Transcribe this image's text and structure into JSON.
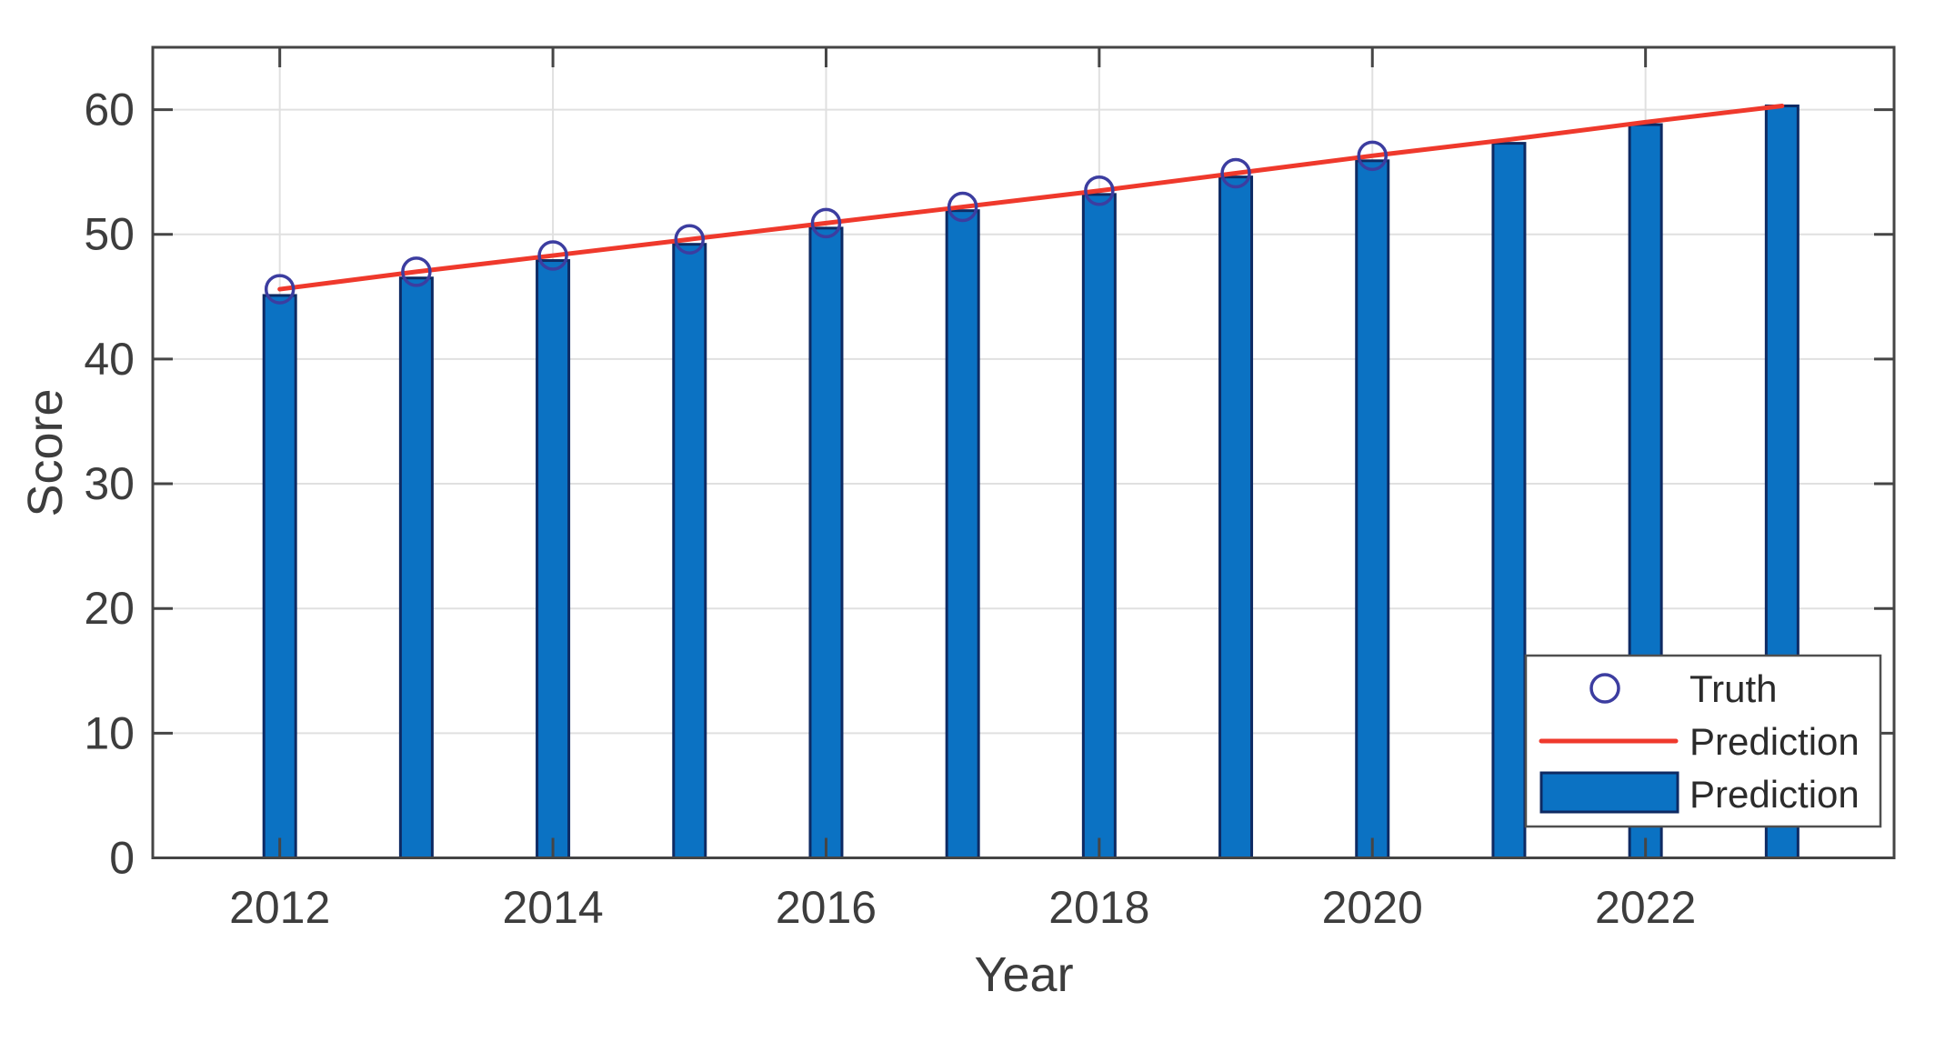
{
  "chart_data": {
    "type": "bar",
    "title": "",
    "xlabel": "Year",
    "ylabel": "Score",
    "x": [
      2012,
      2013,
      2014,
      2015,
      2016,
      2017,
      2018,
      2019,
      2020,
      2021,
      2022,
      2023
    ],
    "xticks": [
      2012,
      2014,
      2016,
      2018,
      2020,
      2022
    ],
    "yticks": [
      0,
      10,
      20,
      30,
      40,
      50,
      60
    ],
    "xlim": [
      2011.07,
      2023.82
    ],
    "ylim": [
      0,
      65
    ],
    "grid": true,
    "legend_position": "lower right",
    "background_color": "#ffffff",
    "axis_color": "#454545",
    "grid_color": "#e0e0e0",
    "tick_label_color": "#3d3d3d",
    "series": [
      {
        "name": "Truth",
        "type": "scatter",
        "marker": "circle",
        "color": "#3c3da0",
        "x": [
          2012,
          2013,
          2014,
          2015,
          2016,
          2017,
          2018,
          2019,
          2020
        ],
        "values": [
          45.6,
          47.0,
          48.3,
          49.6,
          50.9,
          52.2,
          53.5,
          54.9,
          56.3
        ]
      },
      {
        "name": "Prediction",
        "type": "line",
        "color": "#ef392c",
        "x": [
          2012,
          2013,
          2014,
          2015,
          2016,
          2017,
          2018,
          2019,
          2020,
          2021,
          2022,
          2023
        ],
        "values": [
          45.6,
          47.0,
          48.3,
          49.6,
          50.9,
          52.2,
          53.5,
          54.9,
          56.3,
          57.6,
          59.0,
          60.3
        ]
      },
      {
        "name": "Prediction",
        "type": "bar",
        "color": "#0b72c3",
        "edge_color": "#0e2a63",
        "x": [
          2012,
          2013,
          2014,
          2015,
          2016,
          2017,
          2018,
          2019,
          2020,
          2021,
          2022,
          2023
        ],
        "values": [
          45.1,
          46.5,
          47.9,
          49.2,
          50.5,
          51.9,
          53.2,
          54.6,
          55.9,
          57.3,
          58.8,
          60.3
        ]
      }
    ]
  }
}
